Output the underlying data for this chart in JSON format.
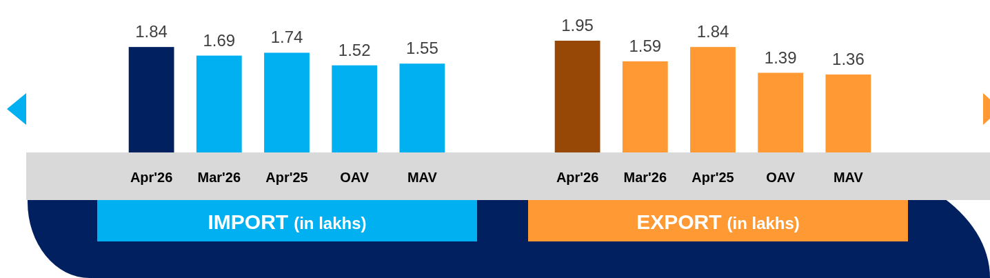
{
  "chart_data": [
    {
      "type": "bar",
      "title": "IMPORT",
      "subtitle": "(in lakhs)",
      "categories": [
        "Apr'26",
        "Mar'26",
        "Apr'25",
        "OAV",
        "MAV"
      ],
      "values": [
        1.84,
        1.69,
        1.74,
        1.52,
        1.55
      ],
      "colors": [
        "#002060",
        "#00b0f0",
        "#00b0f0",
        "#00b0f0",
        "#00b0f0"
      ],
      "data_labels": true
    },
    {
      "type": "bar",
      "title": "EXPORT",
      "subtitle": "(in lakhs)",
      "categories": [
        "Apr'26",
        "Mar'26",
        "Apr'25",
        "OAV",
        "MAV"
      ],
      "values": [
        1.95,
        1.59,
        1.84,
        1.39,
        1.36
      ],
      "colors": [
        "#974706",
        "#ff9933",
        "#ff9933",
        "#ff9933",
        "#ff9933"
      ],
      "data_labels": true
    }
  ]
}
